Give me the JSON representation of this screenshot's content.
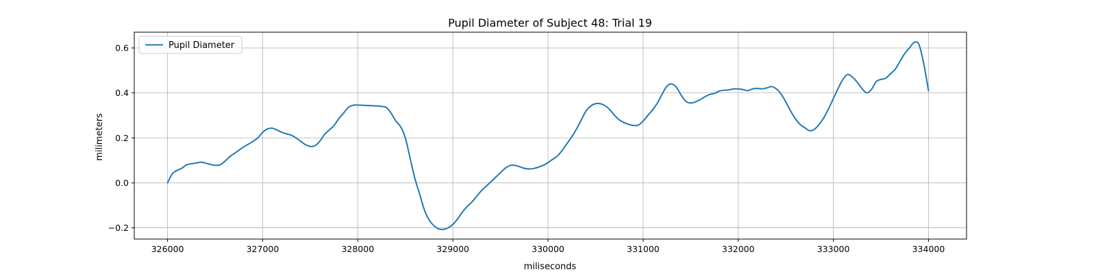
{
  "chart_data": {
    "type": "line",
    "title": "Pupil Diameter of Subject 48: Trial 19",
    "xlabel": "miliseconds",
    "ylabel": "milimeters",
    "xlim": [
      325650,
      334400
    ],
    "ylim": [
      -0.25,
      0.67
    ],
    "xticks": [
      326000,
      327000,
      328000,
      329000,
      330000,
      331000,
      332000,
      333000,
      334000
    ],
    "xtick_labels": [
      "326000",
      "327000",
      "328000",
      "329000",
      "330000",
      "331000",
      "332000",
      "333000",
      "334000"
    ],
    "yticks": [
      -0.2,
      0.0,
      0.2,
      0.4,
      0.6
    ],
    "ytick_labels": [
      "−0.2",
      "0.0",
      "0.2",
      "0.4",
      "0.6"
    ],
    "grid": true,
    "legend_position": "upper-left",
    "series": [
      {
        "name": "Pupil Diameter",
        "color": "#1f77b4",
        "x": [
          326000,
          326050,
          326100,
          326150,
          326200,
          326250,
          326300,
          326350,
          326400,
          326450,
          326500,
          326550,
          326600,
          326650,
          326700,
          326750,
          326800,
          326850,
          326900,
          326950,
          327000,
          327050,
          327100,
          327150,
          327200,
          327250,
          327300,
          327350,
          327400,
          327450,
          327500,
          327550,
          327600,
          327650,
          327700,
          327750,
          327800,
          327850,
          327900,
          327950,
          328000,
          328050,
          328100,
          328150,
          328200,
          328250,
          328300,
          328350,
          328400,
          328450,
          328500,
          328550,
          328600,
          328650,
          328700,
          328750,
          328800,
          328850,
          328900,
          328950,
          329000,
          329050,
          329100,
          329150,
          329200,
          329250,
          329300,
          329350,
          329400,
          329450,
          329500,
          329550,
          329600,
          329650,
          329700,
          329750,
          329800,
          329850,
          329900,
          329950,
          330000,
          330050,
          330100,
          330150,
          330200,
          330250,
          330300,
          330350,
          330400,
          330450,
          330500,
          330550,
          330600,
          330650,
          330700,
          330750,
          330800,
          330850,
          330900,
          330950,
          331000,
          331050,
          331100,
          331150,
          331200,
          331250,
          331300,
          331350,
          331400,
          331450,
          331500,
          331550,
          331600,
          331650,
          331700,
          331750,
          331800,
          331850,
          331900,
          331950,
          332000,
          332050,
          332100,
          332150,
          332200,
          332250,
          332300,
          332350,
          332400,
          332450,
          332500,
          332550,
          332600,
          332650,
          332700,
          332750,
          332800,
          332850,
          332900,
          332950,
          333000,
          333050,
          333100,
          333150,
          333200,
          333250,
          333300,
          333350,
          333400,
          333450,
          333500,
          333550,
          333600,
          333650,
          333700,
          333750,
          333800,
          333850,
          333900,
          333950,
          334000
        ],
        "y": [
          0.0,
          0.04,
          0.055,
          0.065,
          0.08,
          0.085,
          0.088,
          0.092,
          0.088,
          0.082,
          0.078,
          0.08,
          0.095,
          0.115,
          0.13,
          0.145,
          0.16,
          0.172,
          0.185,
          0.2,
          0.225,
          0.24,
          0.243,
          0.235,
          0.225,
          0.218,
          0.212,
          0.2,
          0.185,
          0.17,
          0.162,
          0.165,
          0.185,
          0.215,
          0.235,
          0.255,
          0.285,
          0.31,
          0.335,
          0.345,
          0.346,
          0.345,
          0.344,
          0.343,
          0.342,
          0.34,
          0.335,
          0.31,
          0.275,
          0.25,
          0.2,
          0.11,
          0.02,
          -0.05,
          -0.12,
          -0.165,
          -0.19,
          -0.205,
          -0.207,
          -0.2,
          -0.185,
          -0.16,
          -0.13,
          -0.105,
          -0.085,
          -0.06,
          -0.035,
          -0.015,
          0.005,
          0.025,
          0.045,
          0.065,
          0.077,
          0.078,
          0.072,
          0.065,
          0.062,
          0.064,
          0.07,
          0.078,
          0.09,
          0.105,
          0.12,
          0.145,
          0.175,
          0.205,
          0.24,
          0.28,
          0.32,
          0.342,
          0.352,
          0.352,
          0.343,
          0.325,
          0.3,
          0.28,
          0.268,
          0.26,
          0.255,
          0.257,
          0.275,
          0.3,
          0.325,
          0.355,
          0.395,
          0.43,
          0.44,
          0.425,
          0.39,
          0.362,
          0.355,
          0.36,
          0.37,
          0.383,
          0.393,
          0.398,
          0.408,
          0.412,
          0.413,
          0.418,
          0.418,
          0.415,
          0.41,
          0.418,
          0.42,
          0.418,
          0.422,
          0.428,
          0.418,
          0.395,
          0.36,
          0.32,
          0.285,
          0.26,
          0.245,
          0.232,
          0.238,
          0.26,
          0.29,
          0.33,
          0.375,
          0.42,
          0.46,
          0.482,
          0.47,
          0.448,
          0.42,
          0.4,
          0.415,
          0.45,
          0.46,
          0.465,
          0.485,
          0.505,
          0.54,
          0.575,
          0.6,
          0.625,
          0.615,
          0.53,
          0.41
        ]
      }
    ]
  }
}
